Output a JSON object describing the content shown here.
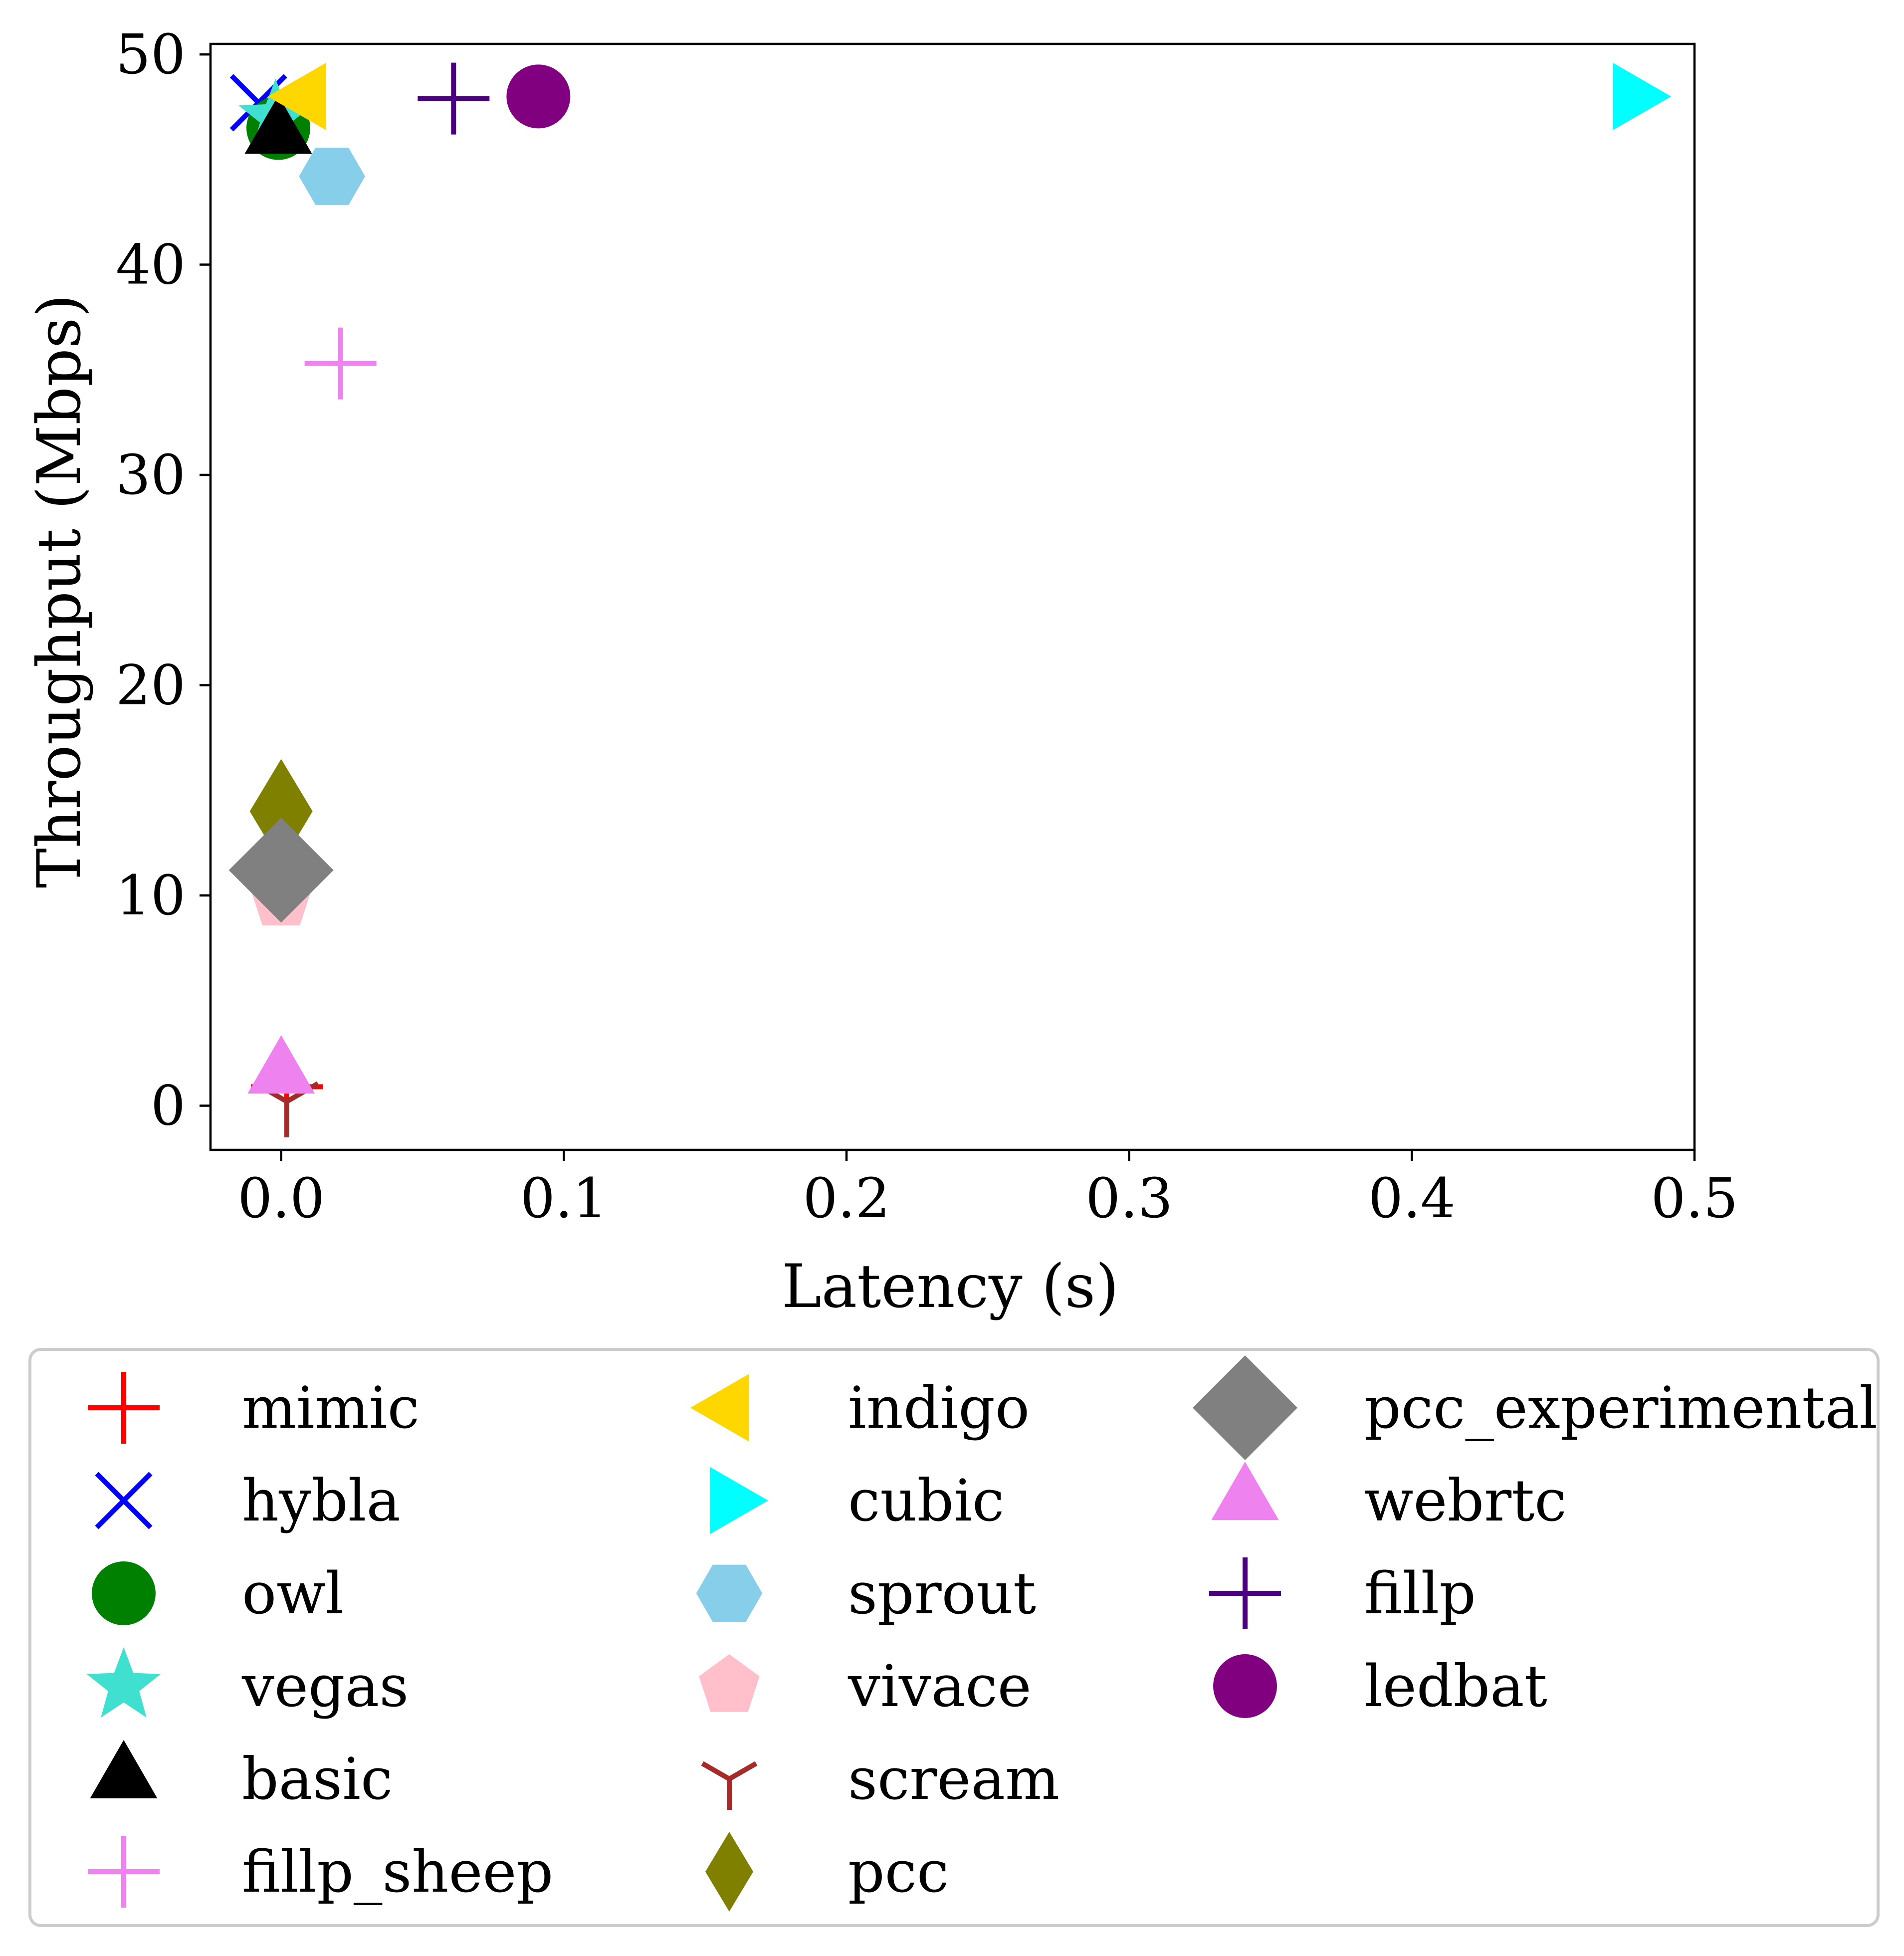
{
  "chart_data": {
    "type": "scatter",
    "xlabel": "Latency (s)",
    "ylabel": "Throughput (Mbps)",
    "xlim": [
      -0.025,
      0.5
    ],
    "ylim": [
      -2.1,
      50.5
    ],
    "x_ticks": [
      0.0,
      0.1,
      0.2,
      0.3,
      0.4,
      0.5
    ],
    "x_tick_labels": [
      "0.0",
      "0.1",
      "0.2",
      "0.3",
      "0.4",
      "0.5"
    ],
    "y_ticks": [
      0,
      10,
      20,
      30,
      40,
      50
    ],
    "y_tick_labels": [
      "0",
      "10",
      "20",
      "30",
      "40",
      "50"
    ],
    "grid": false,
    "legend_position": "below",
    "legend_columns": 3,
    "series": [
      {
        "name": "mimic",
        "marker": "plus",
        "color": "#ff0000",
        "x": 0.002,
        "y": 0.9
      },
      {
        "name": "hybla",
        "marker": "x",
        "color": "#0000ff",
        "x": -0.008,
        "y": 47.7
      },
      {
        "name": "owl",
        "marker": "circle",
        "color": "#008000",
        "x": -0.001,
        "y": 46.5
      },
      {
        "name": "vegas",
        "marker": "star",
        "color": "#40e0d0",
        "x": -0.002,
        "y": 47.0
      },
      {
        "name": "basic",
        "marker": "triangle-up",
        "color": "#000000",
        "x": -0.001,
        "y": 46.2
      },
      {
        "name": "fillp_sheep",
        "marker": "plus",
        "color": "#ee82ee",
        "x": 0.021,
        "y": 35.3
      },
      {
        "name": "indigo",
        "marker": "triangle-left",
        "color": "#ffd700",
        "x": 0.009,
        "y": 48.0
      },
      {
        "name": "cubic",
        "marker": "triangle-right",
        "color": "#00ffff",
        "x": 0.478,
        "y": 48.0
      },
      {
        "name": "sprout",
        "marker": "hexagon",
        "color": "#87ceeb",
        "x": 0.018,
        "y": 44.2
      },
      {
        "name": "vivace",
        "marker": "pentagon",
        "color": "#ffc0cb",
        "x": 0.0,
        "y": 9.8
      },
      {
        "name": "scream",
        "marker": "tri-down",
        "color": "#a52a2a",
        "x": 0.002,
        "y": 0.2
      },
      {
        "name": "pcc",
        "marker": "thin-diamond",
        "color": "#808000",
        "x": 0.0,
        "y": 14.0
      },
      {
        "name": "pcc_experimental",
        "marker": "diamond",
        "color": "#808080",
        "x": 0.0,
        "y": 11.2
      },
      {
        "name": "webrtc",
        "marker": "triangle-up",
        "color": "#ee82ee",
        "x": 0.0,
        "y": 1.5
      },
      {
        "name": "fillp",
        "marker": "plus",
        "color": "#4b0082",
        "x": 0.061,
        "y": 47.9
      },
      {
        "name": "ledbat",
        "marker": "circle",
        "color": "#800080",
        "x": 0.091,
        "y": 48.0
      }
    ]
  }
}
